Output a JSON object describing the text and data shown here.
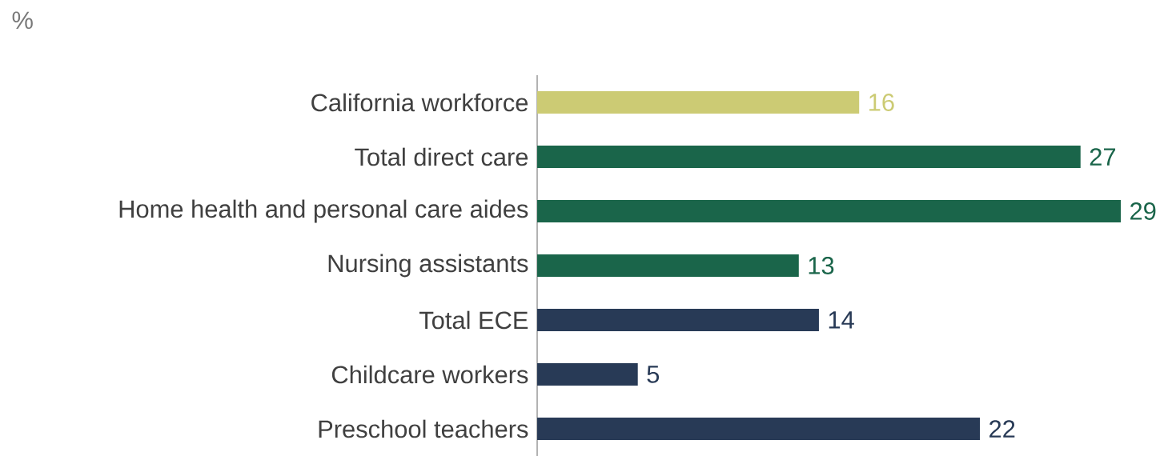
{
  "chart_data": {
    "type": "bar",
    "orientation": "horizontal",
    "annotations": [
      "%"
    ],
    "categories": [
      "California workforce",
      "Total direct care",
      "Home health and personal care aides",
      "Nursing assistants",
      "Total ECE",
      "Childcare workers",
      "Preschool teachers"
    ],
    "values": [
      16,
      27,
      29,
      13,
      14,
      5,
      22
    ],
    "colors": [
      "#cccb74",
      "#1a654a",
      "#1a654a",
      "#1a654a",
      "#283a56",
      "#283a56",
      "#283a56"
    ],
    "data_labels": true
  }
}
